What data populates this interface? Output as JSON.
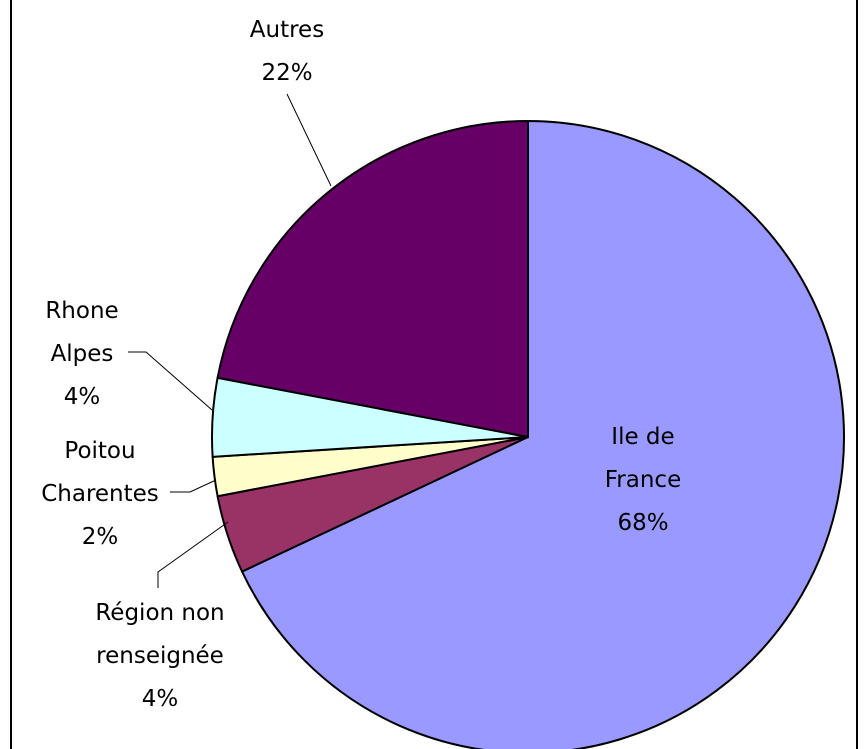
{
  "chart_data": {
    "type": "pie",
    "categories": [
      "Ile de France",
      "Région non renseignée",
      "Poitou Charentes",
      "Rhone Alpes",
      "Autres"
    ],
    "values": [
      68,
      4,
      2,
      4,
      22
    ],
    "value_labels": [
      "68%",
      "4%",
      "2%",
      "4%",
      "22%"
    ],
    "colors": [
      "#9999ff",
      "#993366",
      "#ffffcc",
      "#ccffff",
      "#660066"
    ]
  }
}
